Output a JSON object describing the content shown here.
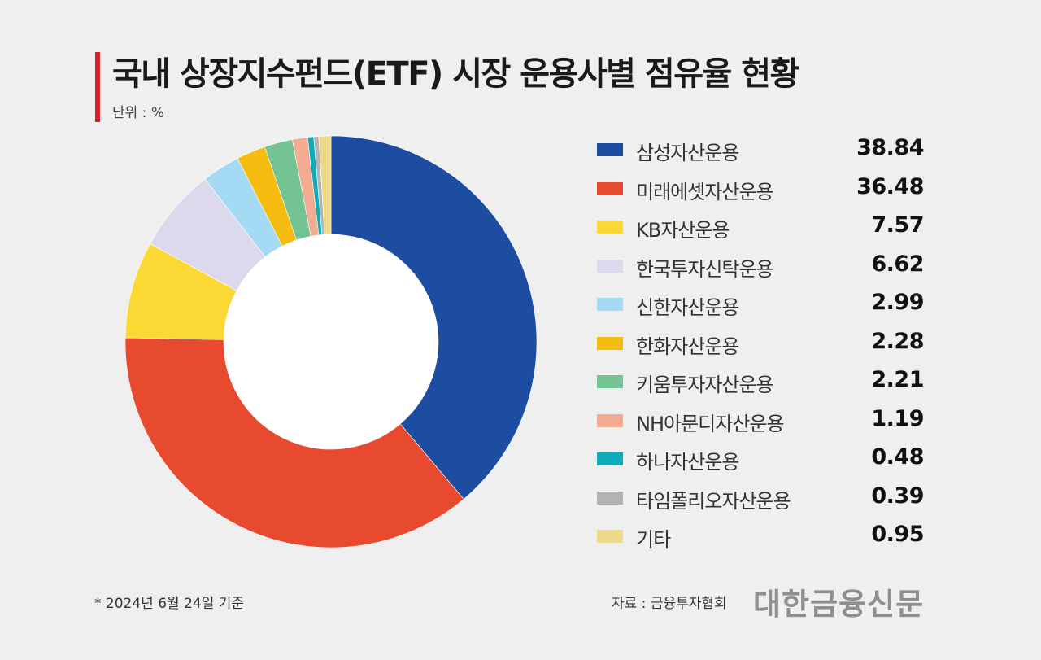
{
  "header": {
    "title": "국내 상장지수펀드(ETF) 시장 운용사별 점유율 현황",
    "unit": "단위 : %"
  },
  "chart_data": {
    "type": "pie",
    "title": "국내 상장지수펀드(ETF) 시장 운용사별 점유율 현황",
    "unit": "%",
    "style": "donut",
    "legend_position": "right",
    "categories": [
      "삼성자산운용",
      "미래에셋자산운용",
      "KB자산운용",
      "한국투자신탁운용",
      "신한자산운용",
      "한화자산운용",
      "키움투자자산운용",
      "NH아문디자산운용",
      "하나자산운용",
      "타임폴리오자산운용",
      "기타"
    ],
    "values": [
      38.84,
      36.48,
      7.57,
      6.62,
      2.99,
      2.28,
      2.21,
      1.19,
      0.48,
      0.39,
      0.95
    ],
    "value_labels": [
      "38.84",
      "36.48",
      "7.57",
      "6.62",
      "2.99",
      "2.28",
      "2.21",
      "1.19",
      "0.48",
      "0.39",
      "0.95"
    ],
    "colors": [
      "#1d4da1",
      "#e84a2f",
      "#fcd835",
      "#dcd9ec",
      "#a5daf4",
      "#f6bc0f",
      "#74c493",
      "#f3ab91",
      "#0eabb8",
      "#b3b3b3",
      "#ecd98a"
    ]
  },
  "footer": {
    "note": "* 2024년 6월 24일 기준",
    "source": "자료 : 금융투자협회",
    "brand": "대한금융신문"
  }
}
